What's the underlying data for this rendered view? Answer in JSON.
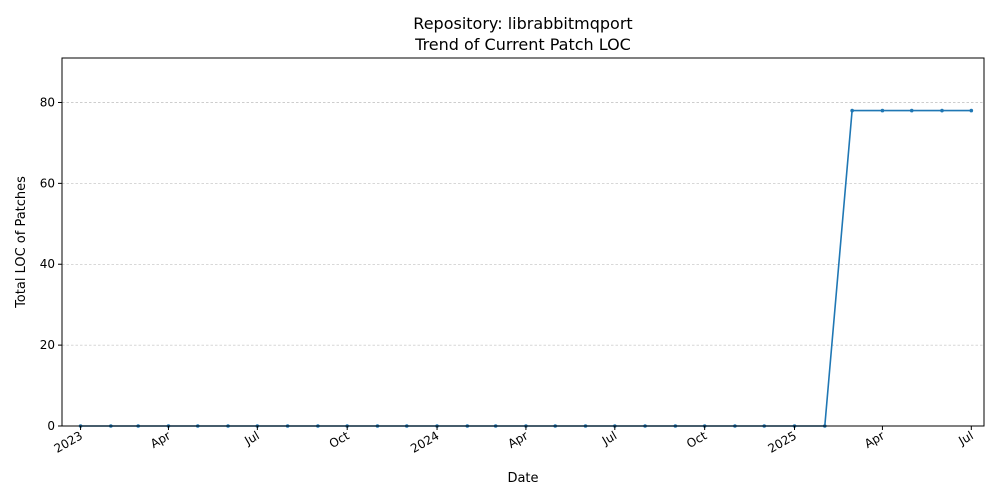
{
  "chart_data": {
    "type": "line",
    "title": "Repository: librabbitmqport",
    "subtitle": "Trend of Current Patch LOC",
    "xlabel": "Date",
    "ylabel": "Total LOC of Patches",
    "ylim": [
      0,
      91
    ],
    "yticks": [
      0,
      20,
      40,
      60,
      80
    ],
    "xlim": [
      "2022-12-13",
      "2025-07-14"
    ],
    "xticks": [
      {
        "date": "2023-01-01",
        "label": "2023"
      },
      {
        "date": "2023-04-01",
        "label": "Apr"
      },
      {
        "date": "2023-07-01",
        "label": "Jul"
      },
      {
        "date": "2023-10-01",
        "label": "Oct"
      },
      {
        "date": "2024-01-01",
        "label": "2024"
      },
      {
        "date": "2024-04-01",
        "label": "Apr"
      },
      {
        "date": "2024-07-01",
        "label": "Jul"
      },
      {
        "date": "2024-10-01",
        "label": "Oct"
      },
      {
        "date": "2025-01-01",
        "label": "2025"
      },
      {
        "date": "2025-04-01",
        "label": "Apr"
      },
      {
        "date": "2025-07-01",
        "label": "Jul"
      }
    ],
    "grid": "y-dashed",
    "color": "#1f77b4",
    "series": [
      {
        "x": [
          "2023-01-01",
          "2023-02-01",
          "2023-03-01",
          "2023-04-01",
          "2023-05-01",
          "2023-06-01",
          "2023-07-01",
          "2023-08-01",
          "2023-09-01",
          "2023-10-01",
          "2023-11-01",
          "2023-12-01",
          "2024-01-01",
          "2024-02-01",
          "2024-03-01",
          "2024-04-01",
          "2024-05-01",
          "2024-06-01",
          "2024-07-01",
          "2024-08-01",
          "2024-09-01",
          "2024-10-01",
          "2024-11-01",
          "2024-12-01",
          "2025-01-01",
          "2025-02-01",
          "2025-03-01",
          "2025-04-01",
          "2025-05-01",
          "2025-06-01",
          "2025-07-01"
        ],
        "values": [
          0,
          0,
          0,
          0,
          0,
          0,
          0,
          0,
          0,
          0,
          0,
          0,
          0,
          0,
          0,
          0,
          0,
          0,
          0,
          0,
          0,
          0,
          0,
          0,
          0,
          0,
          78,
          78,
          78,
          78,
          78
        ]
      }
    ]
  }
}
